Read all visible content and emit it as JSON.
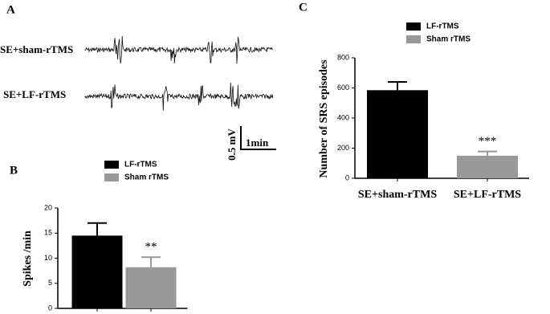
{
  "panel_a": {
    "panel_label": "A",
    "traces": [
      "SE+sham-rTMS",
      "SE+LF-rTMS"
    ],
    "scale_y": "0.5 mV",
    "scale_x": "1min"
  },
  "chart_data": [
    {
      "type": "bar",
      "panel_label": "B",
      "y_label": "Spikes /min",
      "categories": [
        null,
        null
      ],
      "series": [
        {
          "name": "LF-rTMS",
          "color": "#000000",
          "values": [
            14.5,
            null
          ],
          "errors": [
            2.5,
            null
          ]
        },
        {
          "name": "Sham rTMS",
          "color": "#999999",
          "values": [
            null,
            8.2
          ],
          "errors": [
            null,
            2.0
          ]
        }
      ],
      "annotations": [
        {
          "text": "**",
          "category": 1
        }
      ],
      "ylim": [
        0,
        20
      ],
      "yticks": [
        0,
        5,
        10,
        15,
        20
      ]
    },
    {
      "type": "bar",
      "panel_label": "C",
      "y_label": "Number of SRS episodes",
      "categories": [
        "SE+sham-rTMS",
        "SE+LF-rTMS"
      ],
      "series": [
        {
          "name": "LF-rTMS",
          "color": "#000000",
          "values": [
            585,
            null
          ],
          "errors": [
            55,
            null
          ]
        },
        {
          "name": "Sham rTMS",
          "color": "#999999",
          "values": [
            null,
            150
          ],
          "errors": [
            null,
            28
          ]
        }
      ],
      "annotations": [
        {
          "text": "***",
          "category": 1
        }
      ],
      "ylim": [
        0,
        800
      ],
      "yticks": [
        0,
        200,
        400,
        600,
        800
      ]
    }
  ]
}
